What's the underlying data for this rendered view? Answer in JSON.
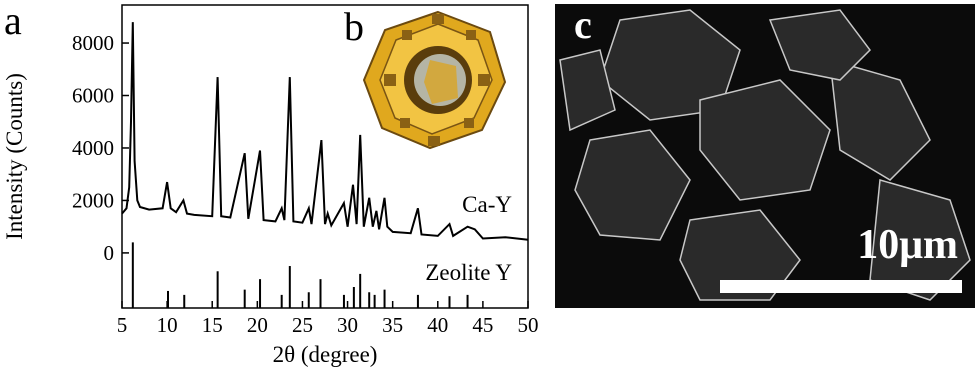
{
  "chart_data": {
    "type": "line",
    "xlabel": "2θ (degree)",
    "ylabel": "Intensity (Counts)",
    "xlim": [
      5,
      50
    ],
    "xticks": [
      5,
      10,
      15,
      20,
      25,
      30,
      35,
      40,
      45,
      50
    ],
    "ylim": [
      -2100,
      9450
    ],
    "yticks": [
      0,
      2000,
      4000,
      6000,
      8000
    ],
    "series": [
      {
        "name": "Ca-Y",
        "color": "#000000",
        "x": [
          5,
          5.5,
          5.8,
          6.0,
          6.2,
          6.4,
          6.7,
          7,
          8,
          9.5,
          10,
          10.4,
          11,
          11.8,
          12.2,
          13,
          15,
          15.6,
          16,
          17,
          18.6,
          19,
          20.3,
          20.7,
          22,
          22.7,
          23,
          23.6,
          24,
          25,
          25.7,
          26,
          27.1,
          27.5,
          27.8,
          28.2,
          29.6,
          30,
          30.6,
          31,
          31.4,
          31.8,
          32.4,
          32.8,
          33.2,
          33.5,
          34.1,
          34.4,
          35,
          37,
          37.8,
          38.2,
          40,
          41.3,
          41.7,
          43.3,
          44.1,
          45,
          47.5,
          50
        ],
        "values": [
          1500,
          1700,
          2500,
          5000,
          8800,
          3500,
          2000,
          1750,
          1650,
          1700,
          2700,
          1700,
          1550,
          2000,
          1500,
          1450,
          1400,
          6700,
          1400,
          1350,
          3800,
          1300,
          3900,
          1250,
          1200,
          1700,
          1250,
          6700,
          1200,
          1150,
          1700,
          1100,
          4300,
          1100,
          1500,
          1050,
          1900,
          1000,
          2600,
          1100,
          4500,
          1000,
          2100,
          1000,
          1600,
          900,
          2100,
          1000,
          800,
          750,
          1700,
          700,
          650,
          1100,
          650,
          1000,
          900,
          550,
          600,
          500
        ]
      },
      {
        "name": "Zeolite Y",
        "color": "#000000",
        "style": "sticks",
        "x": [
          6.2,
          10.1,
          11.9,
          15.6,
          18.6,
          20.3,
          22.7,
          23.6,
          25.7,
          27.0,
          29.6,
          30.7,
          31.4,
          32.4,
          33.0,
          34.1,
          37.8,
          41.3,
          43.3
        ],
        "values": [
          400,
          -1450,
          -1600,
          -700,
          -1400,
          -1000,
          -1600,
          -500,
          -1500,
          -1000,
          -1600,
          -1300,
          -800,
          -1500,
          -1600,
          -1400,
          -1600,
          -1650,
          -1600
        ]
      }
    ]
  },
  "panel_labels": [
    "a",
    "b",
    "c"
  ],
  "scale_bar_label": "10μm"
}
